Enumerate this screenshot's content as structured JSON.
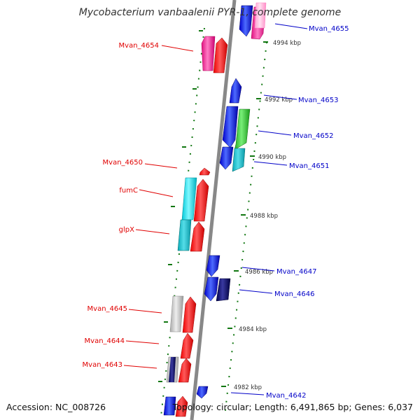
{
  "title": "Mycobacterium vanbaalenii PYR-1, complete genome",
  "footer": {
    "accession": "Accession: NC_008726",
    "summary": "Topology: circular; Length: 6,491,865 bp; Genes: 6,037"
  },
  "colors": {
    "label_left": "#e00000",
    "label_right": "#0000c8",
    "backbone": "#888888",
    "tick": "#117711",
    "kbp_text": "#333333"
  },
  "kbp_ticks": [
    {
      "label": "4994 kbp"
    },
    {
      "label": "4992 kbp"
    },
    {
      "label": "4990 kbp"
    },
    {
      "label": "4988 kbp"
    },
    {
      "label": "4986 kbp"
    },
    {
      "label": "4984 kbp"
    },
    {
      "label": "4982 kbp"
    }
  ],
  "genes": {
    "left": [
      {
        "name": "Mvan_4654"
      },
      {
        "name": "Mvan_4650"
      },
      {
        "name": "fumC"
      },
      {
        "name": "glpX"
      },
      {
        "name": "Mvan_4645"
      },
      {
        "name": "Mvan_4644"
      },
      {
        "name": "Mvan_4643"
      }
    ],
    "right": [
      {
        "name": "Mvan_4655"
      },
      {
        "name": "Mvan_4653"
      },
      {
        "name": "Mvan_4652"
      },
      {
        "name": "Mvan_4651"
      },
      {
        "name": "Mvan_4647"
      },
      {
        "name": "Mvan_4646"
      },
      {
        "name": "Mvan_4642"
      }
    ]
  }
}
